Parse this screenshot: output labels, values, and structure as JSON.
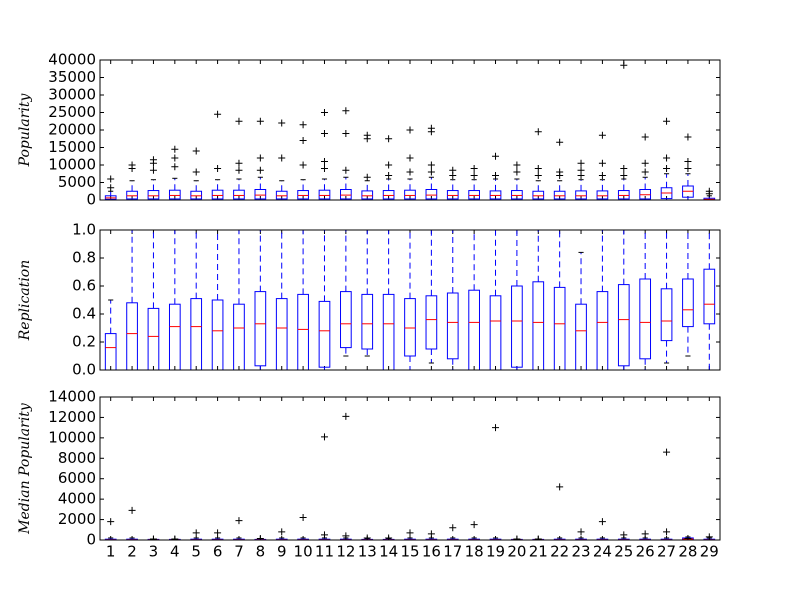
{
  "chart_data": [
    {
      "type": "box",
      "ylabel": "Popularity",
      "color": "#0000ff",
      "median_color": "#ff0000",
      "flier_color": "#000000",
      "ylim": [
        0,
        40000
      ],
      "yticks": [
        0,
        5000,
        10000,
        15000,
        20000,
        25000,
        30000,
        35000,
        40000
      ],
      "boxes": [
        {
          "whislo": 0,
          "q1": 200,
          "median": 600,
          "q3": 1200,
          "whishi": 2500,
          "fliers": [
            3500,
            6000
          ]
        },
        {
          "whislo": 0,
          "q1": 300,
          "median": 1200,
          "q3": 2500,
          "whishi": 5500,
          "fliers": [
            9000,
            10000
          ]
        },
        {
          "whislo": 0,
          "q1": 300,
          "median": 1200,
          "q3": 2700,
          "whishi": 5800,
          "fliers": [
            8500,
            10500,
            11500
          ]
        },
        {
          "whislo": 0,
          "q1": 300,
          "median": 1300,
          "q3": 2800,
          "whishi": 6200,
          "fliers": [
            9500,
            12000,
            14500
          ]
        },
        {
          "whislo": 0,
          "q1": 300,
          "median": 1200,
          "q3": 2500,
          "whishi": 5500,
          "fliers": [
            8000,
            14000
          ]
        },
        {
          "whislo": 0,
          "q1": 300,
          "median": 1300,
          "q3": 2800,
          "whishi": 5800,
          "fliers": [
            9000,
            24500
          ]
        },
        {
          "whislo": 0,
          "q1": 300,
          "median": 1300,
          "q3": 2800,
          "whishi": 6000,
          "fliers": [
            8500,
            10500,
            22500
          ]
        },
        {
          "whislo": 0,
          "q1": 300,
          "median": 1400,
          "q3": 3000,
          "whishi": 6500,
          "fliers": [
            8500,
            12000,
            22500
          ]
        },
        {
          "whislo": 0,
          "q1": 300,
          "median": 1200,
          "q3": 2500,
          "whishi": 5500,
          "fliers": [
            12000,
            22000
          ]
        },
        {
          "whislo": 0,
          "q1": 300,
          "median": 1300,
          "q3": 2700,
          "whishi": 5800,
          "fliers": [
            10000,
            17000,
            21500
          ]
        },
        {
          "whislo": 0,
          "q1": 300,
          "median": 1300,
          "q3": 2800,
          "whishi": 6000,
          "fliers": [
            9000,
            11000,
            19000,
            25000
          ]
        },
        {
          "whislo": 0,
          "q1": 300,
          "median": 1400,
          "q3": 3000,
          "whishi": 6500,
          "fliers": [
            8500,
            19000,
            25500
          ]
        },
        {
          "whislo": 0,
          "q1": 300,
          "median": 1200,
          "q3": 2600,
          "whishi": 5500,
          "fliers": [
            6500,
            17500,
            18500
          ]
        },
        {
          "whislo": 0,
          "q1": 300,
          "median": 1300,
          "q3": 2700,
          "whishi": 6000,
          "fliers": [
            7000,
            10000,
            17500
          ]
        },
        {
          "whislo": 0,
          "q1": 300,
          "median": 1300,
          "q3": 2800,
          "whishi": 6000,
          "fliers": [
            8000,
            12000,
            20000
          ]
        },
        {
          "whislo": 0,
          "q1": 300,
          "median": 1400,
          "q3": 3000,
          "whishi": 6500,
          "fliers": [
            8000,
            10000,
            19500,
            20500
          ]
        },
        {
          "whislo": 0,
          "q1": 300,
          "median": 1300,
          "q3": 2700,
          "whishi": 5800,
          "fliers": [
            7000,
            8500
          ]
        },
        {
          "whislo": 0,
          "q1": 300,
          "median": 1300,
          "q3": 2700,
          "whishi": 5800,
          "fliers": [
            7000,
            9000
          ]
        },
        {
          "whislo": 0,
          "q1": 300,
          "median": 1300,
          "q3": 2600,
          "whishi": 6000,
          "fliers": [
            7000,
            12500
          ]
        },
        {
          "whislo": 0,
          "q1": 300,
          "median": 1300,
          "q3": 2700,
          "whishi": 6000,
          "fliers": [
            8000,
            10000
          ]
        },
        {
          "whislo": 0,
          "q1": 300,
          "median": 1200,
          "q3": 2500,
          "whishi": 5500,
          "fliers": [
            7000,
            9000,
            19500
          ]
        },
        {
          "whislo": 0,
          "q1": 300,
          "median": 1200,
          "q3": 2500,
          "whishi": 5500,
          "fliers": [
            7000,
            8000,
            16500
          ]
        },
        {
          "whislo": 0,
          "q1": 300,
          "median": 1200,
          "q3": 2600,
          "whishi": 5800,
          "fliers": [
            7000,
            8500,
            10500
          ]
        },
        {
          "whislo": 0,
          "q1": 300,
          "median": 1200,
          "q3": 2600,
          "whishi": 5800,
          "fliers": [
            7000,
            10500,
            18500
          ]
        },
        {
          "whislo": 0,
          "q1": 300,
          "median": 1300,
          "q3": 2700,
          "whishi": 6000,
          "fliers": [
            7000,
            9000,
            38500
          ]
        },
        {
          "whislo": 0,
          "q1": 300,
          "median": 1500,
          "q3": 3000,
          "whishi": 6500,
          "fliers": [
            8000,
            10500,
            18000
          ]
        },
        {
          "whislo": 0,
          "q1": 400,
          "median": 2000,
          "q3": 3500,
          "whishi": 7500,
          "fliers": [
            9000,
            12000,
            22500
          ]
        },
        {
          "whislo": 0,
          "q1": 800,
          "median": 2500,
          "q3": 4000,
          "whishi": 7500,
          "fliers": [
            9000,
            11000,
            18000
          ]
        },
        {
          "whislo": 0,
          "q1": 0,
          "median": 200,
          "q3": 500,
          "whishi": 1200,
          "fliers": [
            1800,
            2500
          ]
        }
      ]
    },
    {
      "type": "box",
      "ylabel": "Replication",
      "color": "#0000ff",
      "median_color": "#ff0000",
      "flier_color": "#000000",
      "ylim": [
        0,
        1
      ],
      "yticks": [
        {
          "value": 0,
          "label": "0.0"
        },
        0.2,
        0.4,
        0.6,
        0.8,
        {
          "value": 1,
          "label": "1.0"
        }
      ],
      "boxes": [
        {
          "whislo": 0,
          "q1": 0,
          "median": 0.16,
          "q3": 0.26,
          "whishi": 0.5,
          "fliers": []
        },
        {
          "whislo": 0,
          "q1": 0,
          "median": 0.26,
          "q3": 0.48,
          "whishi": 1,
          "fliers": []
        },
        {
          "whislo": 0,
          "q1": 0,
          "median": 0.24,
          "q3": 0.44,
          "whishi": 1,
          "fliers": []
        },
        {
          "whislo": 0,
          "q1": 0,
          "median": 0.31,
          "q3": 0.47,
          "whishi": 1,
          "fliers": []
        },
        {
          "whislo": 0,
          "q1": 0,
          "median": 0.31,
          "q3": 0.51,
          "whishi": 1,
          "fliers": []
        },
        {
          "whislo": 0,
          "q1": 0,
          "median": 0.28,
          "q3": 0.5,
          "whishi": 1,
          "fliers": []
        },
        {
          "whislo": 0,
          "q1": 0,
          "median": 0.3,
          "q3": 0.47,
          "whishi": 1,
          "fliers": []
        },
        {
          "whislo": 0,
          "q1": 0.03,
          "median": 0.33,
          "q3": 0.56,
          "whishi": 1,
          "fliers": []
        },
        {
          "whislo": 0,
          "q1": 0,
          "median": 0.3,
          "q3": 0.51,
          "whishi": 1,
          "fliers": []
        },
        {
          "whislo": 0,
          "q1": 0,
          "median": 0.29,
          "q3": 0.54,
          "whishi": 1,
          "fliers": []
        },
        {
          "whislo": 0,
          "q1": 0.02,
          "median": 0.28,
          "q3": 0.49,
          "whishi": 1,
          "fliers": []
        },
        {
          "whislo": 0.1,
          "q1": 0.16,
          "median": 0.33,
          "q3": 0.56,
          "whishi": 1,
          "fliers": []
        },
        {
          "whislo": 0.1,
          "q1": 0.15,
          "median": 0.33,
          "q3": 0.54,
          "whishi": 1,
          "fliers": []
        },
        {
          "whislo": 0,
          "q1": 0,
          "median": 0.33,
          "q3": 0.54,
          "whishi": 1,
          "fliers": []
        },
        {
          "whislo": 0,
          "q1": 0.1,
          "median": 0.3,
          "q3": 0.51,
          "whishi": 1,
          "fliers": []
        },
        {
          "whislo": 0.05,
          "q1": 0.15,
          "median": 0.36,
          "q3": 0.53,
          "whishi": 1,
          "fliers": []
        },
        {
          "whislo": 0,
          "q1": 0.08,
          "median": 0.34,
          "q3": 0.55,
          "whishi": 1,
          "fliers": []
        },
        {
          "whislo": 0,
          "q1": 0,
          "median": 0.34,
          "q3": 0.57,
          "whishi": 1,
          "fliers": []
        },
        {
          "whislo": 0,
          "q1": 0,
          "median": 0.35,
          "q3": 0.53,
          "whishi": 1,
          "fliers": []
        },
        {
          "whislo": 0,
          "q1": 0.02,
          "median": 0.35,
          "q3": 0.6,
          "whishi": 1,
          "fliers": []
        },
        {
          "whislo": 0,
          "q1": 0,
          "median": 0.34,
          "q3": 0.63,
          "whishi": 1,
          "fliers": []
        },
        {
          "whislo": 0,
          "q1": 0,
          "median": 0.33,
          "q3": 0.59,
          "whishi": 1,
          "fliers": []
        },
        {
          "whislo": 0,
          "q1": 0,
          "median": 0.28,
          "q3": 0.47,
          "whishi": 0.84,
          "fliers": []
        },
        {
          "whislo": 0,
          "q1": 0,
          "median": 0.34,
          "q3": 0.56,
          "whishi": 1,
          "fliers": []
        },
        {
          "whislo": 0,
          "q1": 0.03,
          "median": 0.36,
          "q3": 0.61,
          "whishi": 1,
          "fliers": []
        },
        {
          "whislo": 0,
          "q1": 0.08,
          "median": 0.34,
          "q3": 0.65,
          "whishi": 1,
          "fliers": []
        },
        {
          "whislo": 0.05,
          "q1": 0.21,
          "median": 0.35,
          "q3": 0.58,
          "whishi": 1,
          "fliers": []
        },
        {
          "whislo": 0.1,
          "q1": 0.31,
          "median": 0.43,
          "q3": 0.65,
          "whishi": 1,
          "fliers": []
        },
        {
          "whislo": 0,
          "q1": 0.33,
          "median": 0.47,
          "q3": 0.72,
          "whishi": 1,
          "fliers": []
        }
      ]
    },
    {
      "type": "box",
      "ylabel": "Median Popularity",
      "color": "#0000ff",
      "median_color": "#ff0000",
      "flier_color": "#000000",
      "ylim": [
        0,
        14000
      ],
      "yticks": [
        0,
        2000,
        4000,
        6000,
        8000,
        10000,
        12000,
        14000
      ],
      "categories": [
        "1",
        "2",
        "3",
        "4",
        "5",
        "6",
        "7",
        "8",
        "9",
        "10",
        "11",
        "12",
        "13",
        "14",
        "15",
        "16",
        "17",
        "18",
        "19",
        "20",
        "21",
        "22",
        "23",
        "24",
        "25",
        "26",
        "27",
        "28",
        "29"
      ],
      "boxes": [
        {
          "whislo": 0,
          "q1": 0,
          "median": 20,
          "q3": 80,
          "whishi": 200,
          "fliers": [
            1800
          ]
        },
        {
          "whislo": 0,
          "q1": 0,
          "median": 20,
          "q3": 80,
          "whishi": 200,
          "fliers": [
            2900
          ]
        },
        {
          "whislo": 0,
          "q1": 0,
          "median": 20,
          "q3": 60,
          "whishi": 80,
          "fliers": [
            100
          ]
        },
        {
          "whislo": 0,
          "q1": 0,
          "median": 20,
          "q3": 60,
          "whishi": 80,
          "fliers": [
            100
          ]
        },
        {
          "whislo": 0,
          "q1": 0,
          "median": 20,
          "q3": 80,
          "whishi": 200,
          "fliers": [
            700
          ]
        },
        {
          "whislo": 0,
          "q1": 0,
          "median": 20,
          "q3": 80,
          "whishi": 200,
          "fliers": [
            700
          ]
        },
        {
          "whislo": 0,
          "q1": 0,
          "median": 20,
          "q3": 80,
          "whishi": 200,
          "fliers": [
            1900
          ]
        },
        {
          "whislo": 0,
          "q1": 0,
          "median": 20,
          "q3": 60,
          "whishi": 100,
          "fliers": [
            150
          ]
        },
        {
          "whislo": 0,
          "q1": 0,
          "median": 20,
          "q3": 80,
          "whishi": 200,
          "fliers": [
            800
          ]
        },
        {
          "whislo": 0,
          "q1": 0,
          "median": 20,
          "q3": 80,
          "whishi": 200,
          "fliers": [
            2200
          ]
        },
        {
          "whislo": 0,
          "q1": 0,
          "median": 20,
          "q3": 80,
          "whishi": 200,
          "fliers": [
            500,
            10100
          ]
        },
        {
          "whislo": 0,
          "q1": 0,
          "median": 20,
          "q3": 80,
          "whishi": 200,
          "fliers": [
            400,
            12100
          ]
        },
        {
          "whislo": 0,
          "q1": 0,
          "median": 20,
          "q3": 60,
          "whishi": 100,
          "fliers": [
            200
          ]
        },
        {
          "whislo": 0,
          "q1": 0,
          "median": 20,
          "q3": 60,
          "whishi": 100,
          "fliers": [
            200
          ]
        },
        {
          "whislo": 0,
          "q1": 0,
          "median": 20,
          "q3": 80,
          "whishi": 200,
          "fliers": [
            700
          ]
        },
        {
          "whislo": 0,
          "q1": 0,
          "median": 20,
          "q3": 80,
          "whishi": 200,
          "fliers": [
            600
          ]
        },
        {
          "whislo": 0,
          "q1": 0,
          "median": 20,
          "q3": 80,
          "whishi": 200,
          "fliers": [
            1200
          ]
        },
        {
          "whislo": 0,
          "q1": 0,
          "median": 20,
          "q3": 80,
          "whishi": 200,
          "fliers": [
            1500
          ]
        },
        {
          "whislo": 0,
          "q1": 0,
          "median": 20,
          "q3": 80,
          "whishi": 200,
          "fliers": [
            11000
          ]
        },
        {
          "whislo": 0,
          "q1": 0,
          "median": 20,
          "q3": 60,
          "whishi": 80,
          "fliers": [
            100
          ]
        },
        {
          "whislo": 0,
          "q1": 0,
          "median": 20,
          "q3": 60,
          "whishi": 80,
          "fliers": [
            100
          ]
        },
        {
          "whislo": 0,
          "q1": 0,
          "median": 20,
          "q3": 80,
          "whishi": 200,
          "fliers": [
            5200
          ]
        },
        {
          "whislo": 0,
          "q1": 0,
          "median": 20,
          "q3": 80,
          "whishi": 200,
          "fliers": [
            800
          ]
        },
        {
          "whislo": 0,
          "q1": 0,
          "median": 20,
          "q3": 80,
          "whishi": 200,
          "fliers": [
            1800
          ]
        },
        {
          "whislo": 0,
          "q1": 0,
          "median": 20,
          "q3": 80,
          "whishi": 200,
          "fliers": [
            500
          ]
        },
        {
          "whislo": 0,
          "q1": 0,
          "median": 20,
          "q3": 80,
          "whishi": 200,
          "fliers": [
            600
          ]
        },
        {
          "whislo": 0,
          "q1": 0,
          "median": 20,
          "q3": 80,
          "whishi": 200,
          "fliers": [
            800,
            8600
          ]
        },
        {
          "whislo": 0,
          "q1": 0,
          "median": 100,
          "q3": 200,
          "whishi": 300,
          "fliers": [
            150
          ]
        },
        {
          "whislo": 0,
          "q1": 0,
          "median": 20,
          "q3": 80,
          "whishi": 200,
          "fliers": [
            300
          ]
        }
      ]
    }
  ]
}
